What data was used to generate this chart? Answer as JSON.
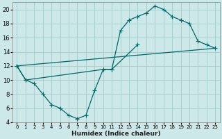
{
  "background_color": "#cce8e8",
  "grid_color": "#aacece",
  "line_color": "#006868",
  "xlabel": "Humidex (Indice chaleur)",
  "ylim": [
    4,
    21
  ],
  "xlim": [
    -0.5,
    23.5
  ],
  "yticks": [
    4,
    6,
    8,
    10,
    12,
    14,
    16,
    18,
    20
  ],
  "xticks": [
    0,
    1,
    2,
    3,
    4,
    5,
    6,
    7,
    8,
    9,
    10,
    11,
    12,
    13,
    14,
    15,
    16,
    17,
    18,
    19,
    20,
    21,
    22,
    23
  ],
  "line1_x": [
    0,
    1,
    2,
    3,
    4,
    5,
    6,
    7,
    8,
    9,
    10,
    11,
    14
  ],
  "line1_y": [
    12,
    10,
    9.5,
    8,
    6.5,
    6,
    5,
    4.5,
    5,
    8.5,
    11.5,
    11.5,
    15
  ],
  "line2_x": [
    0,
    1,
    10,
    11,
    12,
    13,
    14,
    15,
    16,
    17,
    18,
    19,
    20,
    21,
    22,
    23
  ],
  "line2_y": [
    12,
    10,
    11.5,
    11.5,
    17,
    18.5,
    19,
    19.5,
    20.5,
    20,
    19,
    18.5,
    18,
    15.5,
    15,
    14.5
  ],
  "line3_x": [
    0,
    23
  ],
  "line3_y": [
    12,
    14.5
  ],
  "figsize": [
    3.2,
    2.0
  ],
  "dpi": 100
}
